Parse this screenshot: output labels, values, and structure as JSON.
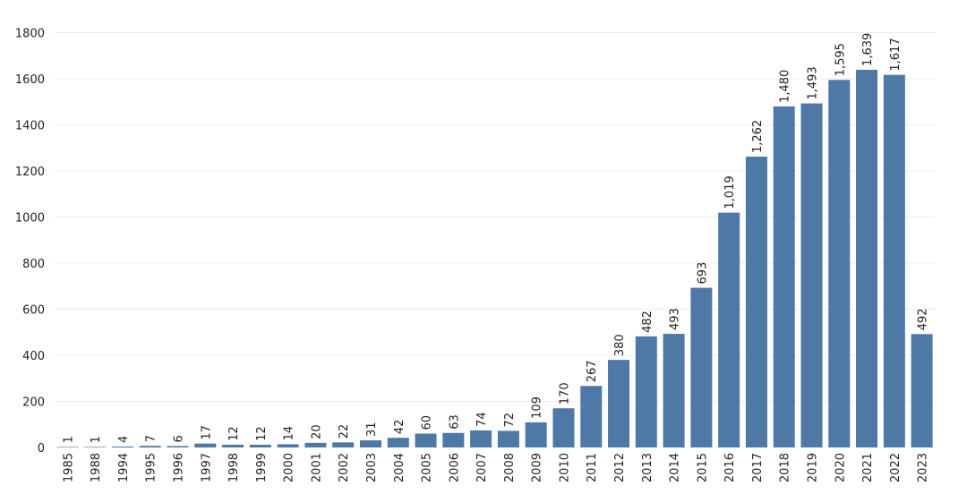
{
  "chart_data": {
    "type": "bar",
    "title": "",
    "xlabel": "",
    "ylabel": "",
    "ylim": [
      0,
      1850
    ],
    "yticks": [
      0,
      200,
      400,
      600,
      800,
      1000,
      1200,
      1400,
      1600,
      1800
    ],
    "grid": true,
    "bar_color": "#4e79a7",
    "categories": [
      "1985",
      "1988",
      "1994",
      "1995",
      "1996",
      "1997",
      "1998",
      "1999",
      "2000",
      "2001",
      "2002",
      "2003",
      "2004",
      "2005",
      "2006",
      "2007",
      "2008",
      "2009",
      "2010",
      "2011",
      "2012",
      "2013",
      "2014",
      "2015",
      "2016",
      "2017",
      "2018",
      "2019",
      "2020",
      "2021",
      "2022",
      "2023"
    ],
    "values": [
      1,
      1,
      4,
      7,
      6,
      17,
      12,
      12,
      14,
      20,
      22,
      31,
      42,
      60,
      63,
      74,
      72,
      109,
      170,
      267,
      380,
      482,
      493,
      693,
      1019,
      1262,
      1480,
      1493,
      1595,
      1639,
      1617,
      492
    ],
    "value_labels": [
      "1",
      "1",
      "4",
      "7",
      "6",
      "17",
      "12",
      "12",
      "14",
      "20",
      "22",
      "31",
      "42",
      "60",
      "63",
      "74",
      "72",
      "109",
      "170",
      "267",
      "380",
      "482",
      "493",
      "693",
      "1,019",
      "1,262",
      "1,480",
      "1,493",
      "1,595",
      "1,639",
      "1,617",
      "492"
    ]
  }
}
